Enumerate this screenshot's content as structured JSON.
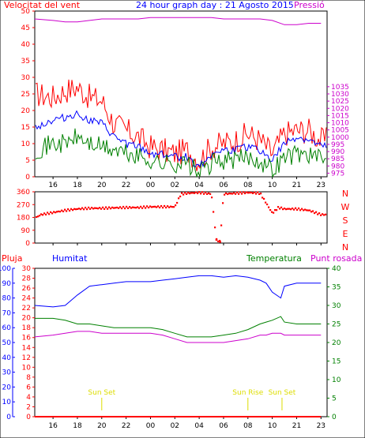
{
  "chart_data": [
    {
      "type": "line",
      "title": "24 hour graph day : 21 Agosto 2015",
      "left_label": "Velocitat del vent",
      "right_label": "Pressió",
      "ylim_left": [
        0,
        50
      ],
      "yticks_left": [
        0,
        5,
        10,
        15,
        20,
        25,
        30,
        35,
        40,
        45,
        50
      ],
      "ylim_right": [
        972.5,
        1087.5
      ],
      "yticks_right": [
        975,
        980,
        985,
        990,
        995,
        1000,
        1005,
        1010,
        1015,
        1020,
        1025,
        1030,
        1035
      ],
      "xticks": [
        "16",
        "18",
        "20",
        "22",
        "00",
        "02",
        "04",
        "06",
        "08",
        "10",
        "21",
        "23"
      ],
      "x_hours": [
        14.5,
        16,
        17,
        18,
        19,
        20,
        21,
        22,
        23,
        24,
        25,
        26,
        27,
        28,
        29,
        30,
        31,
        32,
        33,
        34,
        35,
        36,
        37,
        38
      ],
      "series": [
        {
          "key": "gust",
          "color": "#ff0000",
          "values": [
            25,
            24,
            26,
            27,
            24,
            23,
            16,
            14,
            12,
            9,
            8,
            7,
            8,
            5,
            9,
            10,
            11,
            13,
            11,
            7,
            13,
            14,
            14,
            11
          ]
        },
        {
          "key": "avg",
          "color": "#0000ff",
          "values": [
            15,
            17,
            18,
            19,
            17,
            16,
            12,
            10,
            9,
            7,
            7,
            6,
            6,
            3,
            7,
            8,
            8,
            9,
            8,
            5,
            10,
            12,
            11,
            9
          ]
        },
        {
          "key": "min",
          "color": "#008000",
          "values": [
            8,
            10,
            10,
            12,
            10,
            9,
            8,
            7,
            6,
            5,
            4,
            4,
            4,
            1,
            4,
            5,
            5,
            6,
            5,
            2,
            6,
            7,
            7,
            5
          ]
        },
        {
          "key": "pressure",
          "axis": "right",
          "color": "#cc00cc",
          "values": [
            1082,
            1081,
            1080,
            1080,
            1081,
            1082,
            1082,
            1082,
            1082,
            1083,
            1083,
            1083,
            1083,
            1083,
            1083,
            1082,
            1082,
            1082,
            1082,
            1081,
            1078,
            1078,
            1079,
            1079
          ]
        }
      ]
    },
    {
      "type": "scatter",
      "ylim": [
        0,
        360
      ],
      "yticks": [
        0,
        90,
        180,
        270,
        360
      ],
      "compass_labels": [
        "N",
        "W",
        "S",
        "E",
        "N"
      ],
      "xticks": [
        "16",
        "18",
        "20",
        "22",
        "00",
        "02",
        "04",
        "06",
        "08",
        "10",
        "21",
        "23"
      ],
      "color": "#ff0000",
      "x_hours": [
        14.5,
        15,
        16,
        17,
        18,
        19,
        20,
        21,
        22,
        23,
        24,
        25,
        26,
        26.5,
        27,
        28,
        29,
        29.4,
        29.7,
        30,
        31,
        32,
        33,
        34,
        34.5,
        35,
        36,
        37,
        38
      ],
      "values": [
        175,
        200,
        215,
        230,
        240,
        245,
        245,
        248,
        250,
        250,
        255,
        255,
        255,
        345,
        350,
        355,
        345,
        25,
        10,
        345,
        350,
        355,
        350,
        210,
        250,
        240,
        240,
        230,
        200
      ]
    },
    {
      "type": "line",
      "labels": {
        "rain": "Pluja",
        "humidity": "Humitat",
        "temperature": "Temperatura",
        "dewpoint": "Punt rosada"
      },
      "ylim_humidity": [
        0,
        100
      ],
      "yticks_humidity": [
        0,
        10,
        20,
        30,
        40,
        50,
        60,
        70,
        80,
        90,
        100
      ],
      "ylim_rain": [
        0,
        30
      ],
      "yticks_rain": [
        0,
        2,
        4,
        6,
        8,
        10,
        12,
        14,
        16,
        18,
        20,
        22,
        24,
        26,
        28,
        30
      ],
      "ylim_temperature": [
        0,
        40
      ],
      "yticks_temperature": [
        0,
        5,
        10,
        15,
        20,
        25,
        30,
        35,
        40
      ],
      "xticks": [
        "16",
        "18",
        "20",
        "22",
        "00",
        "02",
        "04",
        "06",
        "08",
        "10",
        "21",
        "23"
      ],
      "x_hours": [
        14.5,
        16,
        17,
        18,
        19,
        20,
        21,
        22,
        23,
        24,
        25,
        26,
        27,
        28,
        29,
        30,
        31,
        32,
        33,
        33.5,
        34,
        34.7,
        35,
        36,
        37,
        38
      ],
      "series": [
        {
          "key": "humidity",
          "axis": "humidity",
          "color": "#0000ff",
          "values": [
            75,
            74,
            75,
            82,
            88,
            89,
            90,
            91,
            91,
            91,
            92,
            93,
            94,
            95,
            95,
            94,
            95,
            94,
            92,
            90,
            84,
            80,
            88,
            90,
            90,
            90
          ]
        },
        {
          "key": "temperature",
          "axis": "temperature",
          "color": "#008000",
          "values": [
            26.5,
            26.5,
            26,
            25,
            25,
            24.5,
            24,
            24,
            24,
            24,
            23.5,
            22.5,
            21.5,
            21.5,
            21.5,
            22,
            22.5,
            23.5,
            25,
            25.5,
            26,
            27,
            25.5,
            25,
            25,
            25
          ]
        },
        {
          "key": "dewpoint",
          "axis": "temperature",
          "color": "#cc00cc",
          "values": [
            21.5,
            22,
            22.5,
            23,
            23,
            22.5,
            22.5,
            22.5,
            22.5,
            22.5,
            22,
            21,
            20,
            20,
            20,
            20,
            20.5,
            21,
            22,
            22,
            22.5,
            22.5,
            22,
            22,
            22,
            22
          ]
        },
        {
          "key": "rain",
          "axis": "rain",
          "color": "#ff0000",
          "values": [
            0,
            0,
            0,
            0,
            0,
            0,
            0,
            0,
            0,
            0,
            0,
            0,
            0,
            0,
            0,
            0,
            0,
            0,
            0,
            0,
            0,
            0,
            0,
            0,
            0,
            0
          ]
        }
      ],
      "annotations": [
        {
          "label": "Sun Set",
          "x_hour": 20
        },
        {
          "label": "Sun Rise",
          "x_hour": 32
        },
        {
          "label": "Sun Set",
          "x_hour": 34.8
        }
      ]
    }
  ]
}
